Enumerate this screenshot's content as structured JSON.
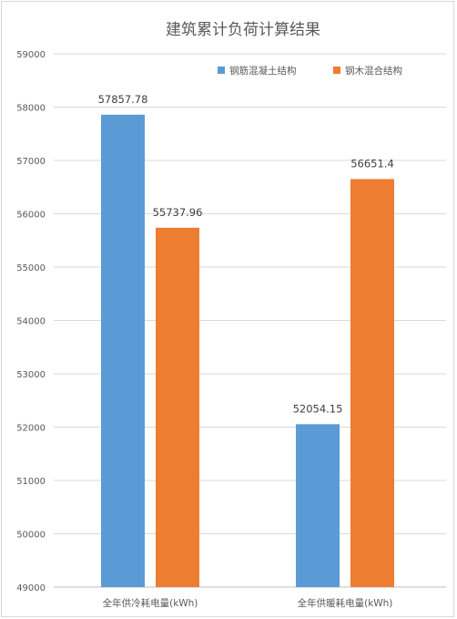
{
  "chart_data": {
    "type": "bar",
    "title": "建筑累计负荷计算结果",
    "categories": [
      "全年供冷耗电量(kWh)",
      "全年供暖耗电量(kWh)"
    ],
    "series": [
      {
        "name": "钢筋混凝土结构",
        "values": [
          57857.78,
          52054.15
        ],
        "labels": [
          "57857.78",
          "52054.15"
        ],
        "color": "#5b9bd5"
      },
      {
        "name": "钢木混合结构",
        "values": [
          55737.96,
          56651.4
        ],
        "labels": [
          "55737.96",
          "56651.4"
        ],
        "color": "#ed7d31"
      }
    ],
    "ylim": [
      49000,
      59000
    ],
    "yticks": [
      49000,
      50000,
      51000,
      52000,
      53000,
      54000,
      55000,
      56000,
      57000,
      58000,
      59000
    ],
    "ytick_labels": [
      "49000",
      "50000",
      "51000",
      "52000",
      "53000",
      "54000",
      "55000",
      "56000",
      "57000",
      "58000",
      "59000"
    ],
    "grid": true,
    "legend_position": "top-right"
  }
}
